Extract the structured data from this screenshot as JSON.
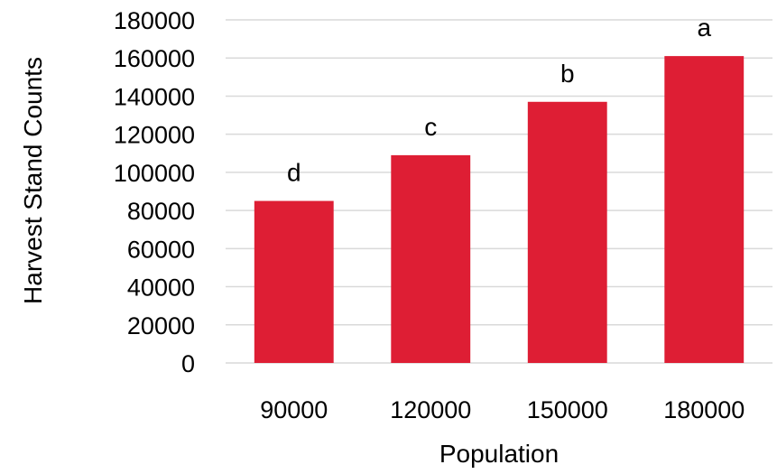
{
  "chart_data": {
    "type": "bar",
    "categories": [
      "90000",
      "120000",
      "150000",
      "180000"
    ],
    "values": [
      85000,
      109000,
      137000,
      161000
    ],
    "data_labels": [
      "d",
      "c",
      "b",
      "a"
    ],
    "title": "",
    "xlabel": "Population",
    "ylabel": "Harvest Stand Counts",
    "ylim": [
      0,
      180000
    ],
    "yticks": [
      0,
      20000,
      40000,
      60000,
      80000,
      100000,
      120000,
      140000,
      160000,
      180000
    ],
    "grid": true,
    "legend": "none",
    "bar_color": "#de1e34"
  }
}
